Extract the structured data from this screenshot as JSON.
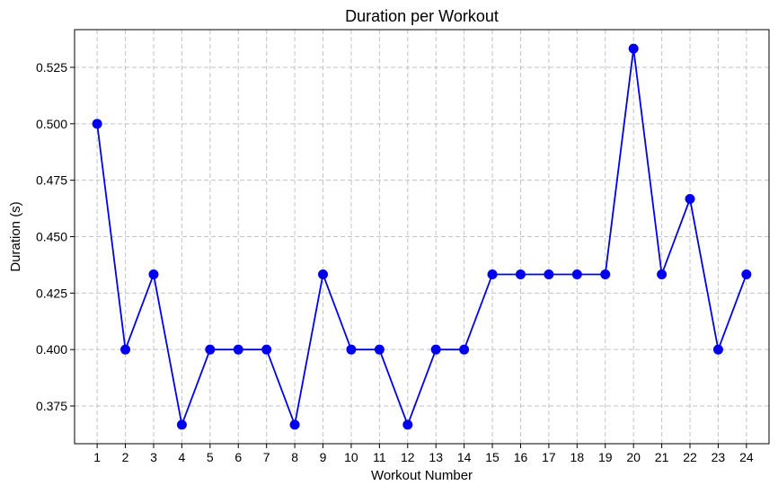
{
  "chart_data": {
    "type": "line",
    "title": "Duration per Workout",
    "xlabel": "Workout Number",
    "ylabel": "Duration (s)",
    "x": [
      1,
      2,
      3,
      4,
      5,
      6,
      7,
      8,
      9,
      10,
      11,
      12,
      13,
      14,
      15,
      16,
      17,
      18,
      19,
      20,
      21,
      22,
      23,
      24
    ],
    "series": [
      {
        "values": [
          0.5,
          0.4,
          0.4333,
          0.3667,
          0.4,
          0.4,
          0.4,
          0.3667,
          0.4333,
          0.4,
          0.4,
          0.3667,
          0.4,
          0.4,
          0.4333,
          0.4333,
          0.4333,
          0.4333,
          0.4333,
          0.5333,
          0.4333,
          0.4667,
          0.4,
          0.4333
        ],
        "color": "#0000ee",
        "marker": "circle"
      }
    ],
    "xlim": [
      0.2,
      24.8
    ],
    "ylim": [
      0.3583,
      0.5417
    ],
    "yticks": [
      0.375,
      0.4,
      0.425,
      0.45,
      0.475,
      0.5,
      0.525
    ],
    "ytick_labels": [
      "0.375",
      "0.400",
      "0.425",
      "0.450",
      "0.475",
      "0.500",
      "0.525"
    ],
    "xticks": [
      1,
      2,
      3,
      4,
      5,
      6,
      7,
      8,
      9,
      10,
      11,
      12,
      13,
      14,
      15,
      16,
      17,
      18,
      19,
      20,
      21,
      22,
      23,
      24
    ],
    "xtick_labels": [
      "1",
      "2",
      "3",
      "4",
      "5",
      "6",
      "7",
      "8",
      "9",
      "10",
      "11",
      "12",
      "13",
      "14",
      "15",
      "16",
      "17",
      "18",
      "19",
      "20",
      "21",
      "22",
      "23",
      "24"
    ],
    "grid": true,
    "legend": "none"
  }
}
